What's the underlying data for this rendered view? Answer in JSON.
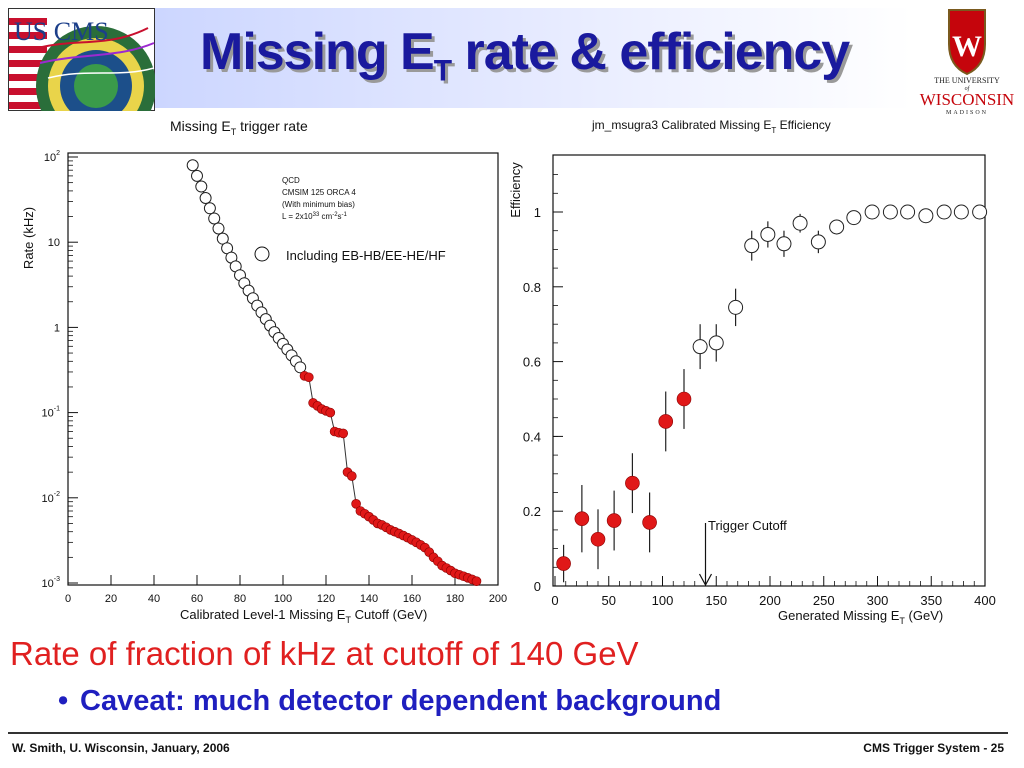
{
  "slide": {
    "title_main": "Missing E",
    "title_sub": "T",
    "title_rest": " rate & efficiency",
    "headline": "Rate of fraction of kHz at cutoff of 140 GeV",
    "bullet": "Caveat: much detector dependent background",
    "footer_left": "W. Smith, U. Wisconsin, January, 2006",
    "footer_right": "CMS Trigger System -  25",
    "uscms_logo_text": "US CMS",
    "uw_logo_line1": "THE UNIVERSITY",
    "uw_logo_line2": "of",
    "uw_logo_line3": "WISCONSIN",
    "uw_logo_line4": "MADISON",
    "colors": {
      "title": "#1a1a9e",
      "headline": "#e02020",
      "bullet": "#1f1fbf",
      "uw_red": "#c5050c"
    }
  },
  "chart_data": [
    {
      "type": "line",
      "title": "Missing E",
      "title_sub": "T",
      "title_rest": " trigger rate",
      "xlabel": "Calibrated Level-1 Missing E",
      "xlabel_sub": "T",
      "xlabel_rest": " Cutoff (GeV)",
      "ylabel": "Rate (kHz)",
      "xlim": [
        0,
        200
      ],
      "ylim": [
        0.001,
        100
      ],
      "yscale": "log",
      "xticks": [
        "0",
        "20",
        "40",
        "60",
        "80",
        "100",
        "120",
        "140",
        "160",
        "180",
        "200"
      ],
      "yticks": [
        {
          "base": "10",
          "exp": "-3",
          "value": 0.001
        },
        {
          "base": "10",
          "exp": "-2",
          "value": 0.01
        },
        {
          "base": "10",
          "exp": "-1",
          "value": 0.1
        },
        {
          "base": "1",
          "exp": "",
          "value": 1
        },
        {
          "base": "10",
          "exp": "",
          "value": 10
        },
        {
          "base": "10",
          "exp": "2",
          "value": 100
        }
      ],
      "info_lines": [
        "QCD",
        "CMSIM 125 ORCA 4",
        "(With minimum bias)",
        "L = 2x10",
        "33",
        " cm",
        "-2",
        "s",
        "-1"
      ],
      "legend": "Including EB-HB/EE-HE/HF",
      "legend_position": "top-right",
      "series": [
        {
          "marker": "open-circle",
          "x": [
            58,
            60,
            62,
            64,
            66,
            68,
            70,
            72,
            74,
            76,
            78,
            80,
            82,
            84,
            86,
            88,
            90,
            92,
            94,
            96,
            98,
            100,
            102,
            104,
            106,
            108
          ],
          "y": [
            80,
            60,
            45,
            33,
            25,
            19,
            14.5,
            11,
            8.5,
            6.6,
            5.2,
            4.1,
            3.3,
            2.7,
            2.2,
            1.8,
            1.5,
            1.25,
            1.05,
            0.88,
            0.75,
            0.64,
            0.55,
            0.47,
            0.4,
            0.34
          ]
        },
        {
          "marker": "filled-circle",
          "color": "#e01818",
          "x": [
            110,
            112,
            114,
            116,
            118,
            120,
            122,
            124,
            126,
            128,
            130,
            132,
            134,
            136,
            138,
            140,
            142,
            144,
            146,
            148,
            150,
            152,
            154,
            156,
            158,
            160,
            162,
            164,
            166,
            168,
            170,
            172,
            174,
            176,
            178,
            180,
            182,
            184,
            186,
            188,
            190
          ],
          "y": [
            0.27,
            0.26,
            0.13,
            0.12,
            0.11,
            0.105,
            0.1,
            0.06,
            0.058,
            0.057,
            0.02,
            0.018,
            0.0085,
            0.007,
            0.0065,
            0.006,
            0.0055,
            0.005,
            0.0048,
            0.0045,
            0.0042,
            0.004,
            0.0038,
            0.0036,
            0.0034,
            0.0032,
            0.003,
            0.0028,
            0.0026,
            0.0023,
            0.002,
            0.0018,
            0.0016,
            0.0015,
            0.0014,
            0.0013,
            0.00125,
            0.0012,
            0.00115,
            0.0011,
            0.00105
          ]
        }
      ]
    },
    {
      "type": "scatter",
      "title": "jm_msugra3 Calibrated Missing E",
      "title_sub": "T",
      "title_rest": " Efficiency",
      "xlabel": "Generated Missing E",
      "xlabel_sub": "T",
      "xlabel_rest": " (GeV)",
      "ylabel": "Efficiency",
      "xlim": [
        0,
        400
      ],
      "ylim": [
        0,
        1.15
      ],
      "xticks": [
        "0",
        "50",
        "100",
        "150",
        "200",
        "250",
        "300",
        "350",
        "400"
      ],
      "yticks": [
        "0",
        "0.2",
        "0.4",
        "0.6",
        "0.8",
        "1"
      ],
      "annotation": "Trigger Cutoff",
      "annotation_x": 140,
      "series": [
        {
          "marker": "filled-circle",
          "color": "#e01818",
          "x": [
            8,
            25,
            40,
            55,
            72,
            88,
            103,
            120
          ],
          "y": [
            0.06,
            0.18,
            0.125,
            0.175,
            0.275,
            0.17,
            0.44,
            0.5
          ],
          "err": [
            0.05,
            0.09,
            0.08,
            0.08,
            0.08,
            0.08,
            0.08,
            0.08
          ]
        },
        {
          "marker": "open-circle",
          "x": [
            135,
            150,
            168,
            183,
            198,
            213,
            228,
            245,
            262,
            278,
            295,
            312,
            328,
            345,
            362,
            378,
            395
          ],
          "y": [
            0.64,
            0.65,
            0.745,
            0.91,
            0.94,
            0.915,
            0.97,
            0.92,
            0.96,
            0.985,
            1.0,
            1.0,
            1.0,
            0.99,
            1.0,
            1.0,
            1.0
          ],
          "err": [
            0.06,
            0.05,
            0.05,
            0.04,
            0.035,
            0.035,
            0.025,
            0.03,
            0.02,
            0.015,
            0.01,
            0.01,
            0.01,
            0.012,
            0.01,
            0.01,
            0.01
          ]
        }
      ]
    }
  ]
}
